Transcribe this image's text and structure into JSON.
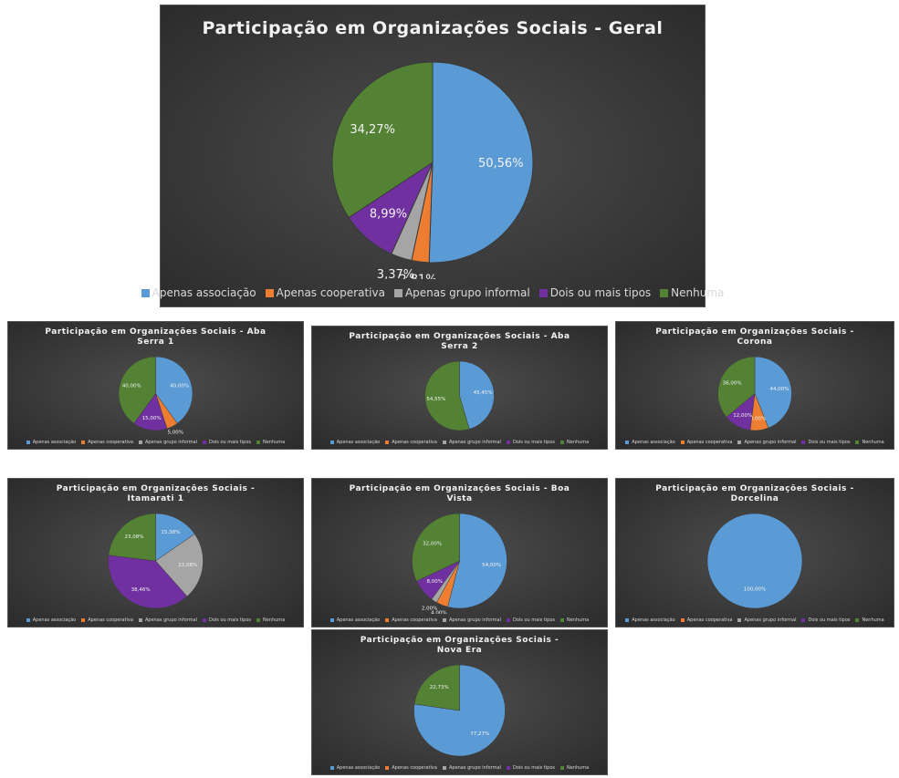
{
  "chart_data": [
    {
      "type": "pie",
      "title": "Participação em Organizações Sociais - Geral",
      "categories": [
        "Apenas associação",
        "Apenas cooperativa",
        "Apenas grupo informal",
        "Dois ou mais tipos",
        "Nenhuma"
      ],
      "values": [
        50.56,
        2.81,
        3.37,
        8.99,
        34.27
      ],
      "value_labels": [
        "50,56%",
        "2,81%",
        "3,37%",
        "8,99%",
        "34,27%"
      ],
      "colors": [
        "#5b9bd5",
        "#ed7d31",
        "#a5a5a5",
        "#7030a0",
        "#548235"
      ]
    },
    {
      "type": "pie",
      "title": "Participação em Organizações Sociais - Aba Serra 1",
      "categories": [
        "Apenas associação",
        "Apenas cooperativa",
        "Apenas grupo informal",
        "Dois ou mais tipos",
        "Nenhuma"
      ],
      "values": [
        40,
        5,
        0,
        15,
        40
      ],
      "value_labels": [
        "40,00%",
        "5,00%",
        null,
        "15,00%",
        "40,00%"
      ],
      "colors": [
        "#5b9bd5",
        "#ed7d31",
        "#a5a5a5",
        "#7030a0",
        "#548235"
      ]
    },
    {
      "type": "pie",
      "title": "Participação em Organizações Sociais - Aba Serra 2",
      "categories": [
        "Apenas associação",
        "Apenas cooperativa",
        "Apenas grupo informal",
        "Dois ou mais tipos",
        "Nenhuma"
      ],
      "values": [
        45.45,
        0,
        0,
        0,
        54.55
      ],
      "value_labels": [
        "45,45%",
        null,
        null,
        null,
        "54,55%"
      ],
      "colors": [
        "#5b9bd5",
        "#ed7d31",
        "#a5a5a5",
        "#7030a0",
        "#548235"
      ]
    },
    {
      "type": "pie",
      "title": "Participação em Organizações Sociais - Corona",
      "categories": [
        "Apenas associação",
        "Apenas cooperativa",
        "Apenas grupo informal",
        "Dois ou mais tipos",
        "Nenhuma"
      ],
      "values": [
        44,
        8,
        0,
        12,
        36
      ],
      "value_labels": [
        "44,00%",
        "8,00%",
        null,
        "12,00%",
        "36,00%"
      ],
      "colors": [
        "#5b9bd5",
        "#ed7d31",
        "#a5a5a5",
        "#7030a0",
        "#548235"
      ]
    },
    {
      "type": "pie",
      "title": "Participação em Organizações Sociais - Itamarati 1",
      "categories": [
        "Apenas associação",
        "Apenas cooperativa",
        "Apenas grupo informal",
        "Dois ou mais tipos",
        "Nenhuma"
      ],
      "values": [
        15.38,
        0,
        23.08,
        38.46,
        23.08
      ],
      "value_labels": [
        "15,38%",
        null,
        "23,08%",
        "38,46%",
        "23,08%"
      ],
      "colors": [
        "#5b9bd5",
        "#ed7d31",
        "#a5a5a5",
        "#7030a0",
        "#548235"
      ]
    },
    {
      "type": "pie",
      "title": "Participação em Organizações Sociais - Boa Vista",
      "categories": [
        "Apenas associação",
        "Apenas cooperativa",
        "Apenas grupo informal",
        "Dois ou mais tipos",
        "Nenhuma"
      ],
      "values": [
        54,
        4,
        2,
        8,
        32
      ],
      "value_labels": [
        "54,00%",
        "4,00%",
        "2,00%",
        "8,00%",
        "32,00%"
      ],
      "colors": [
        "#5b9bd5",
        "#ed7d31",
        "#a5a5a5",
        "#7030a0",
        "#548235"
      ]
    },
    {
      "type": "pie",
      "title": "Participação em Organizações Sociais - Dorcelina",
      "categories": [
        "Apenas associação",
        "Apenas cooperativa",
        "Apenas grupo informal",
        "Dois ou mais tipos",
        "Nenhuma"
      ],
      "values": [
        100,
        0,
        0,
        0,
        0
      ],
      "value_labels": [
        "100,00%",
        null,
        null,
        null,
        null
      ],
      "colors": [
        "#5b9bd5",
        "#ed7d31",
        "#a5a5a5",
        "#7030a0",
        "#548235"
      ]
    },
    {
      "type": "pie",
      "title": "Participação em Organizações Sociais - Nova Era",
      "categories": [
        "Apenas associação",
        "Apenas cooperativa",
        "Apenas grupo informal",
        "Dois ou mais tipos",
        "Nenhuma"
      ],
      "values": [
        77.27,
        0,
        0,
        0,
        22.73
      ],
      "value_labels": [
        "77,27%",
        null,
        null,
        null,
        "22,73%"
      ],
      "colors": [
        "#5b9bd5",
        "#ed7d31",
        "#a5a5a5",
        "#7030a0",
        "#548235"
      ]
    }
  ]
}
